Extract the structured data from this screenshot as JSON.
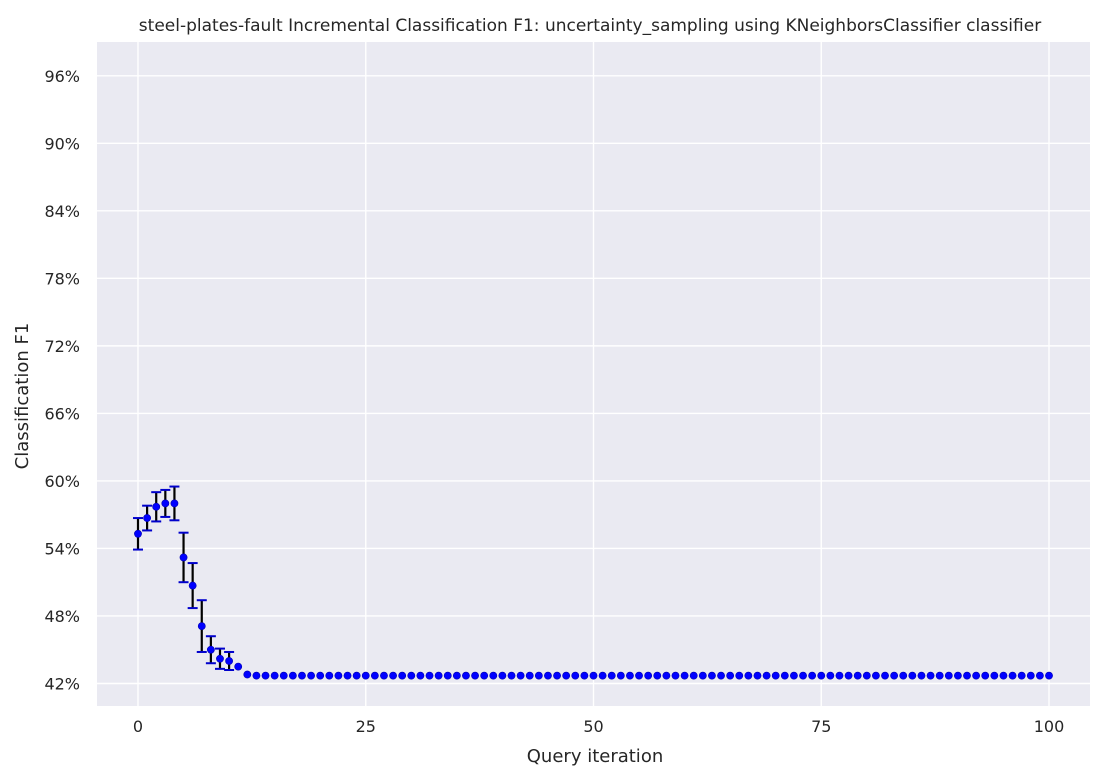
{
  "chart_data": {
    "type": "scatter",
    "title": "steel-plates-fault Incremental Classification F1: uncertainty_sampling using KNeighborsClassifier classifier",
    "xlabel": "Query iteration",
    "ylabel": "Classification F1",
    "xlim": [
      -4.5,
      104.5
    ],
    "ylim": [
      0.4,
      0.99
    ],
    "x_ticks": [
      0,
      25,
      50,
      75,
      100
    ],
    "y_ticks": [
      0.42,
      0.48,
      0.54,
      0.6,
      0.66,
      0.72,
      0.78,
      0.84,
      0.9,
      0.96
    ],
    "y_tick_labels": [
      "42%",
      "48%",
      "54%",
      "60%",
      "66%",
      "72%",
      "78%",
      "84%",
      "90%",
      "96%"
    ],
    "grid": true,
    "marker_color": "#0000ff",
    "errorbar_color": "#000000",
    "cap_color": "#0000cc",
    "background_color": "#eaeaf2",
    "series": [
      {
        "x": [
          0,
          1,
          2,
          3,
          4,
          5,
          6,
          7,
          8,
          9,
          10,
          11,
          12,
          13,
          14,
          15,
          16,
          17,
          18,
          19,
          20,
          21,
          22,
          23,
          24,
          25,
          26,
          27,
          28,
          29,
          30,
          31,
          32,
          33,
          34,
          35,
          36,
          37,
          38,
          39,
          40,
          41,
          42,
          43,
          44,
          45,
          46,
          47,
          48,
          49,
          50,
          51,
          52,
          53,
          54,
          55,
          56,
          57,
          58,
          59,
          60,
          61,
          62,
          63,
          64,
          65,
          66,
          67,
          68,
          69,
          70,
          71,
          72,
          73,
          74,
          75,
          76,
          77,
          78,
          79,
          80,
          81,
          82,
          83,
          84,
          85,
          86,
          87,
          88,
          89,
          90,
          91,
          92,
          93,
          94,
          95,
          96,
          97,
          98,
          99,
          100
        ],
        "y": [
          0.553,
          0.567,
          0.577,
          0.58,
          0.58,
          0.532,
          0.507,
          0.471,
          0.45,
          0.442,
          0.44,
          0.435,
          0.428,
          0.427,
          0.427,
          0.427,
          0.427,
          0.427,
          0.427,
          0.427,
          0.427,
          0.427,
          0.427,
          0.427,
          0.427,
          0.427,
          0.427,
          0.427,
          0.427,
          0.427,
          0.427,
          0.427,
          0.427,
          0.427,
          0.427,
          0.427,
          0.427,
          0.427,
          0.427,
          0.427,
          0.427,
          0.427,
          0.427,
          0.427,
          0.427,
          0.427,
          0.427,
          0.427,
          0.427,
          0.427,
          0.427,
          0.427,
          0.427,
          0.427,
          0.427,
          0.427,
          0.427,
          0.427,
          0.427,
          0.427,
          0.427,
          0.427,
          0.427,
          0.427,
          0.427,
          0.427,
          0.427,
          0.427,
          0.427,
          0.427,
          0.427,
          0.427,
          0.427,
          0.427,
          0.427,
          0.427,
          0.427,
          0.427,
          0.427,
          0.427,
          0.427,
          0.427,
          0.427,
          0.427,
          0.427,
          0.427,
          0.427,
          0.427,
          0.427,
          0.427,
          0.427,
          0.427,
          0.427,
          0.427,
          0.427,
          0.427,
          0.427,
          0.427,
          0.427,
          0.427,
          0.427
        ],
        "error": [
          0.014,
          0.011,
          0.013,
          0.012,
          0.015,
          0.022,
          0.02,
          0.023,
          0.012,
          0.009,
          0.008,
          0,
          0,
          0,
          0,
          0,
          0,
          0,
          0,
          0,
          0,
          0,
          0,
          0,
          0,
          0,
          0,
          0,
          0,
          0,
          0,
          0,
          0,
          0,
          0,
          0,
          0,
          0,
          0,
          0,
          0,
          0,
          0,
          0,
          0,
          0,
          0,
          0,
          0,
          0,
          0,
          0,
          0,
          0,
          0,
          0,
          0,
          0,
          0,
          0,
          0,
          0,
          0,
          0,
          0,
          0,
          0,
          0,
          0,
          0,
          0,
          0,
          0,
          0,
          0,
          0,
          0,
          0,
          0,
          0,
          0,
          0,
          0,
          0,
          0,
          0,
          0,
          0,
          0,
          0,
          0,
          0,
          0,
          0,
          0,
          0,
          0,
          0,
          0,
          0,
          0
        ]
      }
    ]
  }
}
